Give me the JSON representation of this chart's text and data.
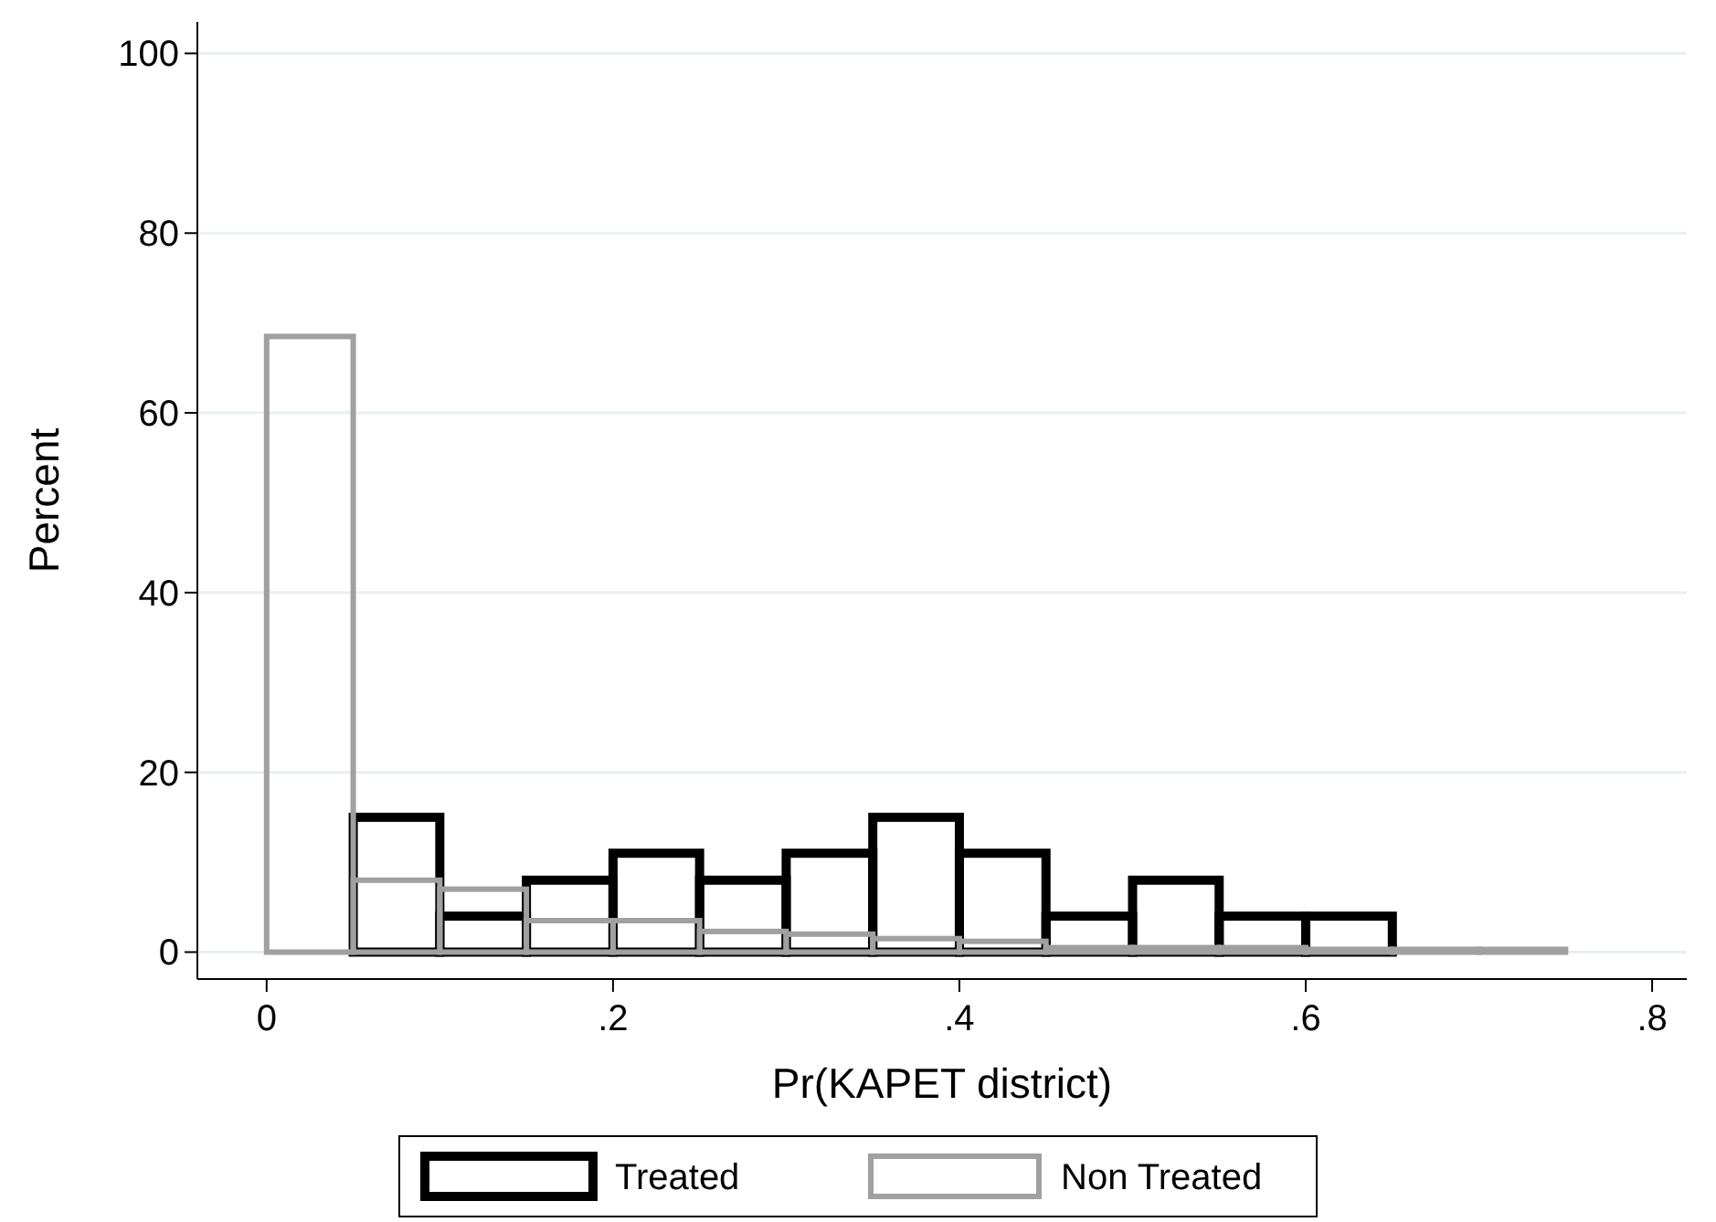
{
  "chart_data": {
    "type": "histogram",
    "xlabel": "Pr(KAPET district)",
    "ylabel": "Percent",
    "bins": [
      0,
      0.05,
      0.1,
      0.15,
      0.2,
      0.25,
      0.3,
      0.35,
      0.4,
      0.45,
      0.5,
      0.55,
      0.6,
      0.65,
      0.7,
      0.75
    ],
    "xlim": [
      -0.04,
      0.82
    ],
    "xticks": [
      0,
      {
        "value": 0.2,
        "label": ".2"
      },
      {
        "value": 0.4,
        "label": ".4"
      },
      {
        "value": 0.6,
        "label": ".6"
      },
      {
        "value": 0.8,
        "label": ".8"
      }
    ],
    "ylim": [
      -3,
      103.5
    ],
    "yticks": [
      0,
      20,
      40,
      60,
      80,
      100
    ],
    "grid": "y",
    "legend": "bottom",
    "series": [
      {
        "name": "Treated",
        "color": "#000000",
        "values": [
          null,
          15,
          4,
          8,
          11,
          8,
          11,
          15,
          11,
          4,
          8,
          4,
          4,
          null,
          null
        ]
      },
      {
        "name": "Non Treated",
        "color": "#a0a0a0",
        "values": [
          68.5,
          8,
          7,
          3.5,
          3.5,
          2.3,
          2,
          1.5,
          1.2,
          0.5,
          0.5,
          0.5,
          0.3,
          0.3,
          0.3
        ]
      }
    ]
  }
}
